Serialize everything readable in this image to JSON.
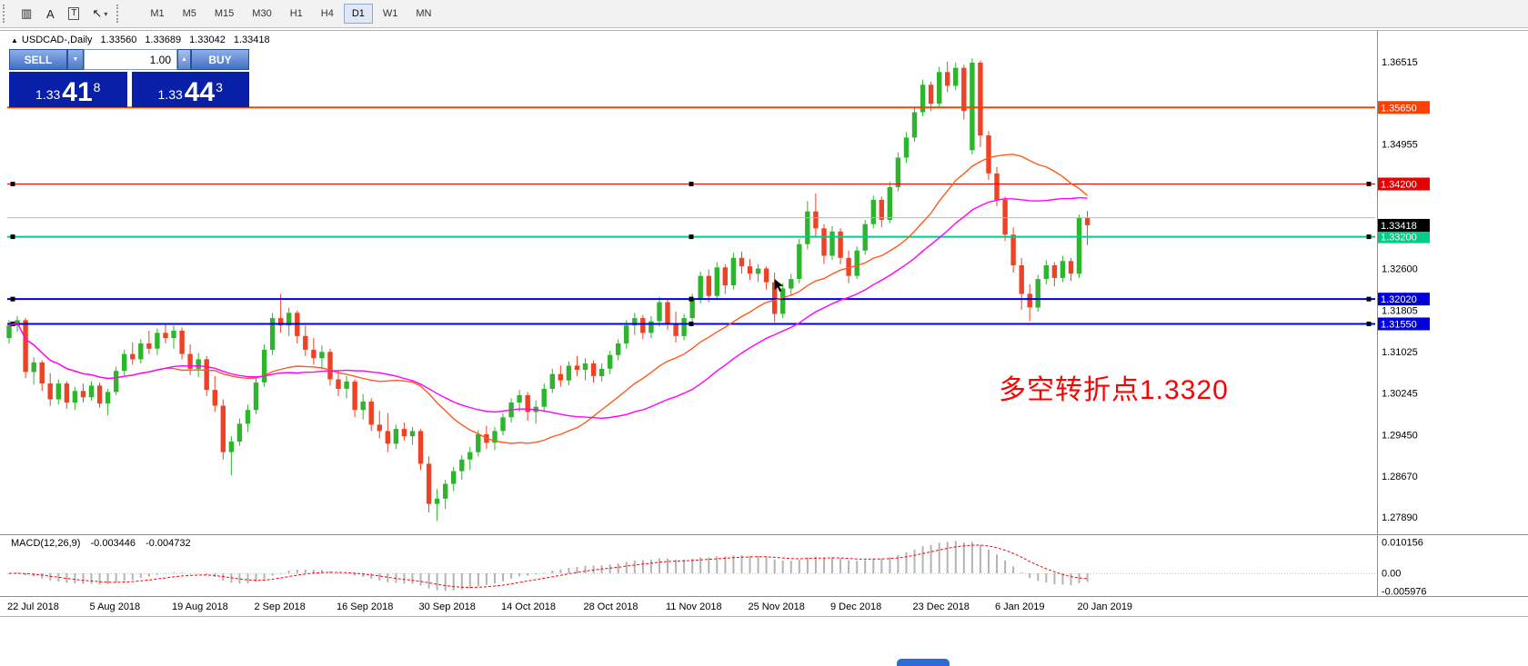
{
  "toolbar": {
    "icons": [
      {
        "name": "grid-icon",
        "glyph": "▥"
      },
      {
        "name": "label-a-icon",
        "glyph": "A"
      },
      {
        "name": "text-box-icon",
        "glyph": "T"
      },
      {
        "name": "cursor-tool-icon",
        "glyph": "↖"
      },
      {
        "name": "dropdown-caret-icon",
        "glyph": "▾"
      }
    ],
    "timeframes": [
      "M1",
      "M5",
      "M15",
      "M30",
      "H1",
      "H4",
      "D1",
      "W1",
      "MN"
    ],
    "active_timeframe": "D1"
  },
  "chart_info": {
    "marker": "▲",
    "symbol": "USDCAD-,Daily",
    "open": "1.33560",
    "high": "1.33689",
    "low": "1.33042",
    "close": "1.33418"
  },
  "one_click": {
    "sell_label": "SELL",
    "buy_label": "BUY",
    "volume": "1.00",
    "sell_price": {
      "prefix": "1.33",
      "big": "41",
      "sup": "8"
    },
    "buy_price": {
      "prefix": "1.33",
      "big": "44",
      "sup": "3"
    },
    "panel_color": "#0820a8"
  },
  "annotation": {
    "text": "多空转折点1.3320",
    "color": "#ff0000"
  },
  "chart_data": {
    "type": "candlestick",
    "symbol": "USDCAD",
    "timeframe": "Daily",
    "bull_color": "#2db52d",
    "bear_color": "#ef4123",
    "x_labels": [
      {
        "i": 0,
        "t": "22 Jul 2018"
      },
      {
        "i": 10,
        "t": "5 Aug 2018"
      },
      {
        "i": 20,
        "t": "19 Aug 2018"
      },
      {
        "i": 30,
        "t": "2 Sep 2018"
      },
      {
        "i": 40,
        "t": "16 Sep 2018"
      },
      {
        "i": 50,
        "t": "30 Sep 2018"
      },
      {
        "i": 60,
        "t": "14 Oct 2018"
      },
      {
        "i": 70,
        "t": "28 Oct 2018"
      },
      {
        "i": 80,
        "t": "11 Nov 2018"
      },
      {
        "i": 90,
        "t": "25 Nov 2018"
      },
      {
        "i": 100,
        "t": "9 Dec 2018"
      },
      {
        "i": 110,
        "t": "23 Dec 2018"
      },
      {
        "i": 120,
        "t": "6 Jan 2019"
      },
      {
        "i": 130,
        "t": "20 Jan 2019"
      }
    ],
    "y_axis_labels": [
      {
        "v": 1.36515,
        "t": "1.36515"
      },
      {
        "v": 1.34955,
        "t": "1.34955"
      },
      {
        "v": 1.326,
        "t": "1.32600"
      },
      {
        "v": 1.31805,
        "t": "1.31805"
      },
      {
        "v": 1.31025,
        "t": "1.31025"
      },
      {
        "v": 1.30245,
        "t": "1.30245"
      },
      {
        "v": 1.2945,
        "t": "1.29450"
      },
      {
        "v": 1.2867,
        "t": "1.28670"
      },
      {
        "v": 1.2789,
        "t": "1.27890"
      }
    ],
    "hlines": [
      {
        "price": 1.3565,
        "color": "#ff4000",
        "width": 2,
        "badge": "1.35650",
        "handles": false
      },
      {
        "price": 1.342,
        "color": "#e60000",
        "width": 1,
        "badge": "1.34200",
        "handles": true
      },
      {
        "price": 1.3356,
        "color": "#b8b8b8",
        "width": 1,
        "badge": null,
        "handles": false
      },
      {
        "price": 1.332,
        "color": "#00ce84",
        "width": 2,
        "badge": "1.33200",
        "handles": true
      },
      {
        "price": 1.3202,
        "color": "#0000dd",
        "width": 2,
        "badge": "1.32020",
        "handles": true
      },
      {
        "price": 1.3155,
        "color": "#0000dd",
        "width": 2,
        "badge": "1.31550",
        "handles": true
      }
    ],
    "current_price": {
      "value": 1.33418,
      "label": "1.33418",
      "badge_color": "#000000"
    },
    "moving_averages": [
      {
        "name": "fast-ma",
        "period": 20,
        "color": "#ff5a1e"
      },
      {
        "name": "slow-ma",
        "period": 34,
        "color": "#ff00ff"
      }
    ],
    "markers": [
      {
        "type": "pointer",
        "index": 93,
        "price": 1.324
      }
    ],
    "macd": {
      "label": "MACD(12,26,9)",
      "value": "-0.003446",
      "signal_value": "-0.004732",
      "params": [
        12,
        26,
        9
      ],
      "histogram_color": "#b4b4b4",
      "signal_color": "#ff0000",
      "y_labels": [
        {
          "v": 0.010156,
          "t": "0.010156"
        },
        {
          "v": 0,
          "t": "0.00"
        },
        {
          "v": -0.005976,
          "t": "-0.005976"
        }
      ]
    },
    "candles": [
      [
        1.3128,
        1.3162,
        1.3118,
        1.3152
      ],
      [
        1.3152,
        1.317,
        1.314,
        1.3162
      ],
      [
        1.3162,
        1.3166,
        1.3052,
        1.3064
      ],
      [
        1.3064,
        1.3092,
        1.304,
        1.3082
      ],
      [
        1.3082,
        1.3086,
        1.3028,
        1.3042
      ],
      [
        1.3042,
        1.3062,
        1.3,
        1.3012
      ],
      [
        1.3012,
        1.305,
        1.3002,
        1.3042
      ],
      [
        1.3042,
        1.3046,
        1.2994,
        1.3006
      ],
      [
        1.3006,
        1.3036,
        1.2992,
        1.3028
      ],
      [
        1.3028,
        1.3042,
        1.3006,
        1.3016
      ],
      [
        1.3016,
        1.3046,
        1.301,
        1.3038
      ],
      [
        1.3038,
        1.3044,
        1.2996,
        1.3004
      ],
      [
        1.3004,
        1.3032,
        1.2982,
        1.3026
      ],
      [
        1.3026,
        1.3074,
        1.302,
        1.3066
      ],
      [
        1.3066,
        1.3106,
        1.3058,
        1.3098
      ],
      [
        1.3098,
        1.312,
        1.3078,
        1.3088
      ],
      [
        1.3088,
        1.3126,
        1.308,
        1.3118
      ],
      [
        1.3118,
        1.3142,
        1.3098,
        1.3108
      ],
      [
        1.3108,
        1.3146,
        1.3096,
        1.3138
      ],
      [
        1.3138,
        1.3156,
        1.3118,
        1.3128
      ],
      [
        1.3128,
        1.3152,
        1.3108,
        1.3142
      ],
      [
        1.3142,
        1.3148,
        1.3088,
        1.3098
      ],
      [
        1.3098,
        1.3116,
        1.3058,
        1.307
      ],
      [
        1.307,
        1.31,
        1.3054,
        1.3088
      ],
      [
        1.3088,
        1.3094,
        1.3018,
        1.303
      ],
      [
        1.303,
        1.3056,
        1.2988,
        1.3
      ],
      [
        1.3,
        1.3012,
        1.2898,
        1.2912
      ],
      [
        1.2912,
        1.2942,
        1.2868,
        1.2932
      ],
      [
        1.2932,
        1.2976,
        1.2924,
        1.2966
      ],
      [
        1.2966,
        1.3002,
        1.295,
        1.2992
      ],
      [
        1.2992,
        1.3052,
        1.2984,
        1.3044
      ],
      [
        1.3044,
        1.3116,
        1.3036,
        1.3106
      ],
      [
        1.3106,
        1.3176,
        1.3096,
        1.3166
      ],
      [
        1.3166,
        1.3212,
        1.3138,
        1.3152
      ],
      [
        1.3152,
        1.3186,
        1.3132,
        1.3176
      ],
      [
        1.3176,
        1.318,
        1.3118,
        1.3132
      ],
      [
        1.3132,
        1.3152,
        1.3094,
        1.3106
      ],
      [
        1.3106,
        1.3128,
        1.3078,
        1.309
      ],
      [
        1.309,
        1.3114,
        1.3068,
        1.3102
      ],
      [
        1.3102,
        1.3108,
        1.3038,
        1.305
      ],
      [
        1.305,
        1.3068,
        1.3018,
        1.3032
      ],
      [
        1.3032,
        1.3056,
        1.3014,
        1.3046
      ],
      [
        1.3046,
        1.305,
        1.2978,
        1.2992
      ],
      [
        1.2992,
        1.3022,
        1.2974,
        1.3008
      ],
      [
        1.3008,
        1.3014,
        1.2952,
        1.2964
      ],
      [
        1.2964,
        1.299,
        1.2938,
        1.2952
      ],
      [
        1.2952,
        1.2986,
        1.2912,
        1.2928
      ],
      [
        1.2928,
        1.2964,
        1.2918,
        1.2956
      ],
      [
        1.2956,
        1.2968,
        1.2934,
        1.2942
      ],
      [
        1.2942,
        1.296,
        1.2926,
        1.2952
      ],
      [
        1.2952,
        1.2956,
        1.2878,
        1.289
      ],
      [
        1.289,
        1.2904,
        1.2798,
        1.2814
      ],
      [
        1.2814,
        1.2842,
        1.2782,
        1.2824
      ],
      [
        1.2824,
        1.286,
        1.2804,
        1.2852
      ],
      [
        1.2852,
        1.2884,
        1.2838,
        1.2876
      ],
      [
        1.2876,
        1.2906,
        1.286,
        1.2898
      ],
      [
        1.2898,
        1.2922,
        1.2878,
        1.2912
      ],
      [
        1.2912,
        1.2954,
        1.2904,
        1.2946
      ],
      [
        1.2946,
        1.2962,
        1.2918,
        1.293
      ],
      [
        1.293,
        1.296,
        1.2916,
        1.2952
      ],
      [
        1.2952,
        1.2986,
        1.2944,
        1.2978
      ],
      [
        1.2978,
        1.3014,
        1.2968,
        1.3006
      ],
      [
        1.3006,
        1.303,
        1.2988,
        1.302
      ],
      [
        1.302,
        1.3026,
        1.2972,
        1.2988
      ],
      [
        1.2988,
        1.301,
        1.2966,
        1.2998
      ],
      [
        1.2998,
        1.3042,
        1.299,
        1.3032
      ],
      [
        1.3032,
        1.307,
        1.3024,
        1.306
      ],
      [
        1.306,
        1.3076,
        1.3036,
        1.3048
      ],
      [
        1.3048,
        1.3084,
        1.3038,
        1.3076
      ],
      [
        1.3076,
        1.3094,
        1.3056,
        1.3068
      ],
      [
        1.3068,
        1.309,
        1.3048,
        1.308
      ],
      [
        1.308,
        1.3086,
        1.3044,
        1.3056
      ],
      [
        1.3056,
        1.308,
        1.3046,
        1.307
      ],
      [
        1.307,
        1.3104,
        1.306,
        1.3096
      ],
      [
        1.3096,
        1.3126,
        1.3086,
        1.3118
      ],
      [
        1.3118,
        1.3162,
        1.3108,
        1.3152
      ],
      [
        1.3152,
        1.3176,
        1.3134,
        1.3166
      ],
      [
        1.3166,
        1.3172,
        1.3126,
        1.3138
      ],
      [
        1.3138,
        1.317,
        1.3128,
        1.316
      ],
      [
        1.316,
        1.3206,
        1.315,
        1.3196
      ],
      [
        1.3196,
        1.3202,
        1.3144,
        1.3156
      ],
      [
        1.3156,
        1.3178,
        1.312,
        1.3132
      ],
      [
        1.3132,
        1.3174,
        1.3124,
        1.3166
      ],
      [
        1.3166,
        1.3212,
        1.3156,
        1.3202
      ],
      [
        1.3202,
        1.3254,
        1.3194,
        1.3246
      ],
      [
        1.3246,
        1.3258,
        1.3196,
        1.3208
      ],
      [
        1.3208,
        1.3272,
        1.32,
        1.3262
      ],
      [
        1.3262,
        1.3268,
        1.3212,
        1.3228
      ],
      [
        1.3228,
        1.329,
        1.322,
        1.328
      ],
      [
        1.328,
        1.3292,
        1.325,
        1.3264
      ],
      [
        1.3264,
        1.3278,
        1.3238,
        1.325
      ],
      [
        1.325,
        1.3268,
        1.3234,
        1.326
      ],
      [
        1.326,
        1.3264,
        1.322,
        1.3234
      ],
      [
        1.3234,
        1.3252,
        1.3158,
        1.3174
      ],
      [
        1.3174,
        1.3232,
        1.3166,
        1.3222
      ],
      [
        1.3222,
        1.325,
        1.3208,
        1.324
      ],
      [
        1.324,
        1.3316,
        1.3232,
        1.3306
      ],
      [
        1.3306,
        1.3388,
        1.3296,
        1.3368
      ],
      [
        1.3368,
        1.3402,
        1.3318,
        1.3336
      ],
      [
        1.3336,
        1.3344,
        1.3268,
        1.3284
      ],
      [
        1.3284,
        1.334,
        1.3276,
        1.333
      ],
      [
        1.333,
        1.3336,
        1.3268,
        1.328
      ],
      [
        1.328,
        1.3294,
        1.3232,
        1.3246
      ],
      [
        1.3246,
        1.3302,
        1.324,
        1.3294
      ],
      [
        1.3294,
        1.3352,
        1.3286,
        1.3344
      ],
      [
        1.3344,
        1.3398,
        1.3336,
        1.339
      ],
      [
        1.339,
        1.3396,
        1.3338,
        1.3352
      ],
      [
        1.3352,
        1.3424,
        1.3346,
        1.3414
      ],
      [
        1.3414,
        1.348,
        1.3406,
        1.347
      ],
      [
        1.347,
        1.3518,
        1.346,
        1.3508
      ],
      [
        1.3508,
        1.3564,
        1.35,
        1.3556
      ],
      [
        1.3556,
        1.3618,
        1.3548,
        1.3608
      ],
      [
        1.3608,
        1.3614,
        1.3558,
        1.3572
      ],
      [
        1.3572,
        1.3642,
        1.3564,
        1.3632
      ],
      [
        1.3632,
        1.3652,
        1.3594,
        1.3606
      ],
      [
        1.3606,
        1.365,
        1.3598,
        1.364
      ],
      [
        1.364,
        1.3646,
        1.3542,
        1.3558
      ],
      [
        1.3484,
        1.3658,
        1.3476,
        1.365
      ],
      [
        1.365,
        1.3654,
        1.349,
        1.3512
      ],
      [
        1.3512,
        1.352,
        1.3428,
        1.344
      ],
      [
        1.344,
        1.3452,
        1.3378,
        1.339
      ],
      [
        1.339,
        1.3396,
        1.3312,
        1.3324
      ],
      [
        1.3324,
        1.3338,
        1.3252,
        1.3266
      ],
      [
        1.3266,
        1.328,
        1.3182,
        1.3212
      ],
      [
        1.3212,
        1.323,
        1.316,
        1.3186
      ],
      [
        1.3186,
        1.3248,
        1.3178,
        1.324
      ],
      [
        1.324,
        1.3276,
        1.323,
        1.3266
      ],
      [
        1.3266,
        1.3272,
        1.3226,
        1.3242
      ],
      [
        1.3242,
        1.3284,
        1.3234,
        1.3274
      ],
      [
        1.3274,
        1.328,
        1.3236,
        1.325
      ],
      [
        1.325,
        1.3362,
        1.3242,
        1.3356
      ],
      [
        1.3356,
        1.3369,
        1.3304,
        1.3342
      ]
    ]
  },
  "misc": {
    "bottom_fragment_color": "#2e6bd6"
  }
}
